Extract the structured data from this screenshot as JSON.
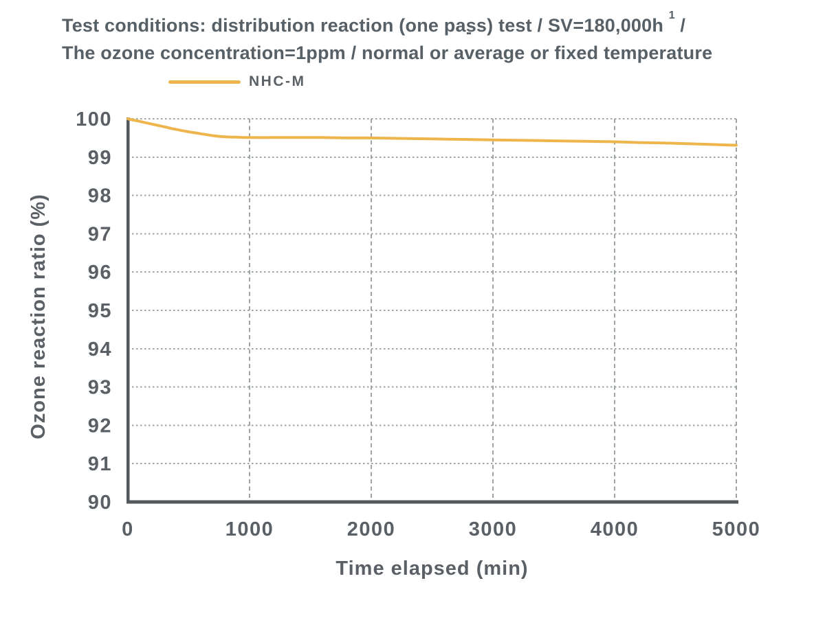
{
  "title": {
    "line1_main": "Test conditions: distribution reaction (one pass) test / SV=180,000h ",
    "line1_sup": "1",
    "line1_tail": " /",
    "line2_pre": "The ozone concentration=1ppm / normal or a",
    "line2_macron": "-",
    "line2_v": "v",
    "line2_post": "erage or fixed temperature"
  },
  "legend": {
    "label": "NHC-M"
  },
  "colors": {
    "accent": "#EDB54C",
    "text": "#5A6066",
    "title_text": "#566066",
    "grid": "#9EA3A6",
    "axis": "#54595E"
  },
  "chart_data": {
    "type": "line",
    "title": "Test conditions: distribution reaction (one pass) test / SV=180,000h-1 / The ozone concentration=1ppm / normal or average or fixed temperature",
    "xlabel": "Time elapsed (min)",
    "ylabel": "Ozone reaction ratio (%)",
    "xlim": [
      0,
      5000
    ],
    "ylim": [
      90,
      100
    ],
    "xticks": [
      0,
      1000,
      2000,
      3000,
      4000,
      5000
    ],
    "yticks": [
      90,
      91,
      92,
      93,
      94,
      95,
      96,
      97,
      98,
      99,
      100
    ],
    "grid": true,
    "legend_position": "top-left",
    "series": [
      {
        "name": "NHC-M",
        "color": "#EDB54C",
        "x": [
          0,
          100,
          200,
          300,
          400,
          500,
          600,
          700,
          800,
          900,
          1000,
          1200,
          1400,
          1600,
          1800,
          2000,
          2200,
          2400,
          2600,
          2800,
          3000,
          3200,
          3400,
          3600,
          3800,
          4000,
          4200,
          4400,
          4600,
          4800,
          5000
        ],
        "y": [
          100.0,
          99.93,
          99.86,
          99.79,
          99.72,
          99.66,
          99.61,
          99.56,
          99.53,
          99.52,
          99.51,
          99.51,
          99.51,
          99.51,
          99.5,
          99.5,
          99.49,
          99.48,
          99.47,
          99.46,
          99.45,
          99.44,
          99.43,
          99.42,
          99.41,
          99.4,
          99.38,
          99.37,
          99.35,
          99.33,
          99.31
        ]
      }
    ]
  }
}
